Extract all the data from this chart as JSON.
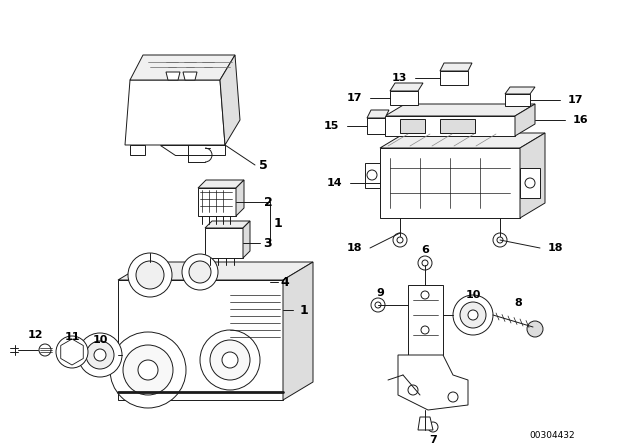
{
  "background_color": "#ffffff",
  "line_color": "#1a1a1a",
  "text_color": "#000000",
  "diagram_code": "00304432",
  "figsize": [
    6.4,
    4.48
  ],
  "dpi": 100,
  "lw": 0.7
}
